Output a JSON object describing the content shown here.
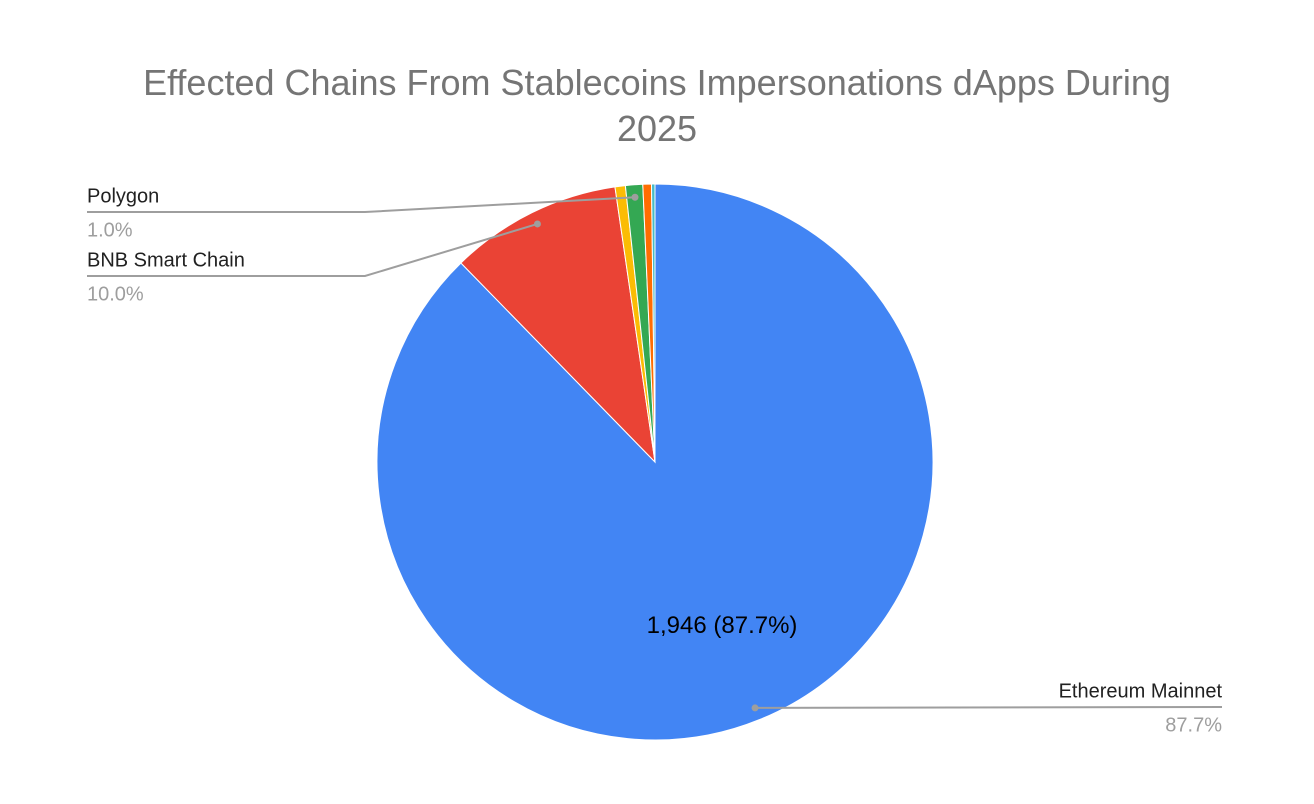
{
  "chart_data": {
    "type": "pie",
    "title": "Effected Chains From Stablecoins Impersonations dApps During 2025",
    "categories": [
      "Ethereum Mainnet",
      "BNB Smart Chain",
      null,
      "Polygon",
      null,
      null
    ],
    "values": [
      87.7,
      10.0,
      0.6,
      1.0,
      0.5,
      0.2
    ],
    "value_labels": [
      "87.7%",
      "10.0%",
      null,
      "1.0%",
      null,
      null
    ],
    "inner_labels": [
      "1,946 (87.7%)",
      null,
      null,
      null,
      null,
      null
    ],
    "colors": [
      "#4285f4",
      "#ea4335",
      "#fbbc04",
      "#34a853",
      "#ff6d01",
      "#46bdc6"
    ]
  }
}
